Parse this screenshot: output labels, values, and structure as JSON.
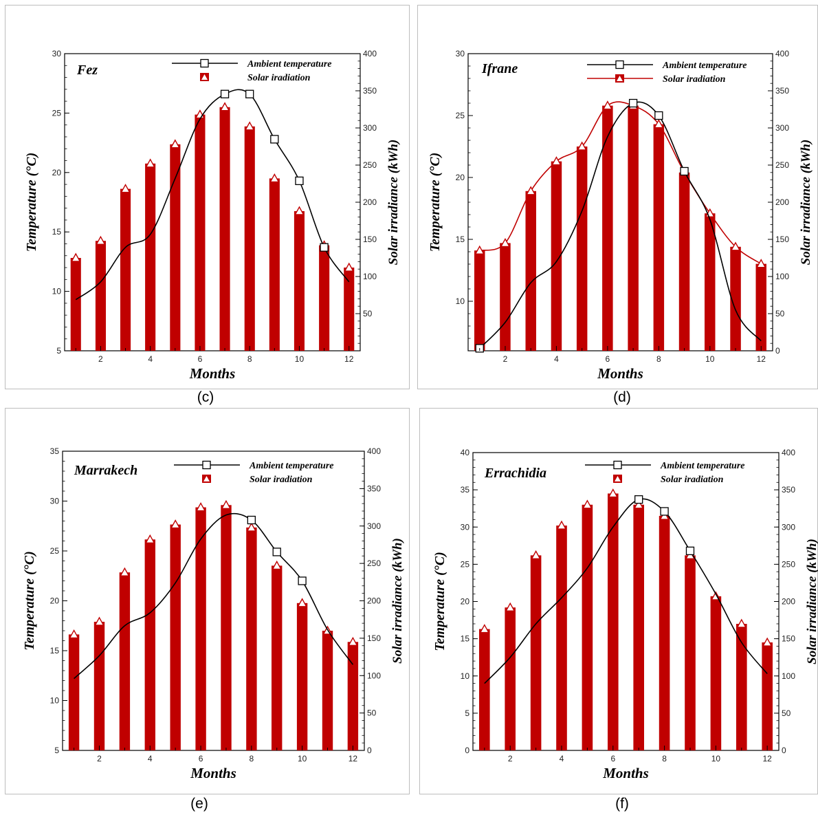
{
  "chart_data": [
    {
      "type": "bar",
      "panel_label": "(c)",
      "title": "Fez",
      "xlabel": "Months",
      "ylabel": "Temperature (°C)",
      "y2label": "Solar irradiance (kWh)",
      "x": [
        1,
        2,
        3,
        4,
        5,
        6,
        7,
        8,
        9,
        10,
        11,
        12
      ],
      "x_ticks": [
        2,
        4,
        6,
        8,
        10,
        12
      ],
      "ylim": [
        5,
        30
      ],
      "y_ticks": [
        5,
        10,
        15,
        20,
        25,
        30
      ],
      "y2lim": [
        0,
        400
      ],
      "y2_ticks": [
        50,
        100,
        150,
        200,
        250,
        300,
        350,
        400
      ],
      "legend_position": "top-right",
      "temp_smooth_peak": 7.6,
      "series": [
        {
          "name": "Ambient temperature",
          "axis": "left",
          "kind": "line",
          "color": "#000000",
          "values": [
            9.3,
            10.8,
            13.7,
            14.8,
            19.5,
            24.5,
            26.6,
            26.6,
            22.8,
            19.3,
            13.7,
            10.8
          ],
          "marker_indices": [
            6,
            7,
            8,
            9,
            10
          ]
        },
        {
          "name": "Solar iradiation",
          "axis": "right",
          "kind": "bar",
          "color": "#c00000",
          "values": [
            125,
            148,
            218,
            252,
            278,
            318,
            328,
            302,
            232,
            188,
            142,
            112
          ]
        }
      ]
    },
    {
      "type": "bar",
      "panel_label": "(d)",
      "title": "Ifrane",
      "xlabel": "Months",
      "ylabel": "Temperature (°C)",
      "y2label": "Solar irradiance (kWh)",
      "x": [
        1,
        2,
        3,
        4,
        5,
        6,
        7,
        8,
        9,
        10,
        11,
        12
      ],
      "x_ticks": [
        2,
        4,
        6,
        8,
        10,
        12
      ],
      "ylim": [
        6,
        30
      ],
      "y_ticks": [
        10,
        15,
        20,
        25,
        30
      ],
      "y2lim": [
        0,
        400
      ],
      "y2_ticks": [
        0,
        50,
        100,
        150,
        200,
        250,
        300,
        350,
        400
      ],
      "legend_position": "top-right",
      "temp_smooth_peak": 7.0,
      "series": [
        {
          "name": "Ambient temperature",
          "axis": "left",
          "kind": "line",
          "color": "#000000",
          "values": [
            6.2,
            8.3,
            11.5,
            13.2,
            17.3,
            23.3,
            26.0,
            25.0,
            20.5,
            16.6,
            9.3,
            6.8
          ],
          "marker_indices": [
            0,
            6,
            7,
            8
          ]
        },
        {
          "name": "Solar iradiation",
          "axis": "right",
          "kind": "bar",
          "color": "#c00000",
          "line_color": "#c00000",
          "values": [
            135,
            145,
            215,
            255,
            275,
            330,
            330,
            305,
            240,
            185,
            140,
            117
          ]
        }
      ]
    },
    {
      "type": "bar",
      "panel_label": "(e)",
      "title": "Marrakech",
      "xlabel": "Months",
      "ylabel": "Temperature (°C)",
      "y2label": "Solar irradiance (kWh)",
      "x": [
        1,
        2,
        3,
        4,
        5,
        6,
        7,
        8,
        9,
        10,
        11,
        12
      ],
      "x_ticks": [
        2,
        4,
        6,
        8,
        10,
        12
      ],
      "ylim": [
        5,
        35
      ],
      "y_ticks": [
        5,
        10,
        15,
        20,
        25,
        30,
        35
      ],
      "y2lim": [
        0,
        400
      ],
      "y2_ticks": [
        0,
        50,
        100,
        150,
        200,
        250,
        300,
        350,
        400
      ],
      "legend_position": "top-right",
      "temp_smooth_peak": 7.3,
      "series": [
        {
          "name": "Ambient temperature",
          "axis": "left",
          "kind": "line",
          "color": "#000000",
          "values": [
            12.2,
            14.5,
            17.5,
            18.8,
            21.8,
            26.2,
            28.6,
            28.1,
            24.9,
            22.0,
            17.1,
            13.6
          ],
          "marker_indices": [
            7,
            8,
            9
          ]
        },
        {
          "name": "Solar iradiation",
          "axis": "right",
          "kind": "bar",
          "color": "#c00000",
          "values": [
            155,
            172,
            238,
            282,
            302,
            325,
            328,
            298,
            247,
            197,
            160,
            145
          ]
        }
      ]
    },
    {
      "type": "bar",
      "panel_label": "(f)",
      "title": "Errachidia",
      "xlabel": "Months",
      "ylabel": "Temperature (°C)",
      "y2label": "Solar irradiance (kWh)",
      "x": [
        1,
        2,
        3,
        4,
        5,
        6,
        7,
        8,
        9,
        10,
        11,
        12
      ],
      "x_ticks": [
        2,
        4,
        6,
        8,
        10,
        12
      ],
      "ylim": [
        0,
        40
      ],
      "y_ticks": [
        0,
        5,
        10,
        15,
        20,
        25,
        30,
        35,
        40
      ],
      "y2lim": [
        0,
        400
      ],
      "y2_ticks": [
        0,
        50,
        100,
        150,
        200,
        250,
        300,
        350,
        400
      ],
      "legend_position": "top-right",
      "temp_smooth_peak": 7.1,
      "series": [
        {
          "name": "Ambient temperature",
          "axis": "left",
          "kind": "line",
          "color": "#000000",
          "values": [
            9.0,
            12.5,
            17.0,
            20.5,
            24.5,
            30.0,
            33.7,
            32.1,
            26.8,
            21.0,
            14.5,
            10.3
          ],
          "marker_indices": [
            6,
            7,
            8
          ]
        },
        {
          "name": "Solar iradiation",
          "axis": "right",
          "kind": "bar",
          "color": "#c00000",
          "values": [
            163,
            192,
            262,
            302,
            330,
            345,
            330,
            315,
            262,
            207,
            170,
            145
          ]
        }
      ]
    }
  ]
}
